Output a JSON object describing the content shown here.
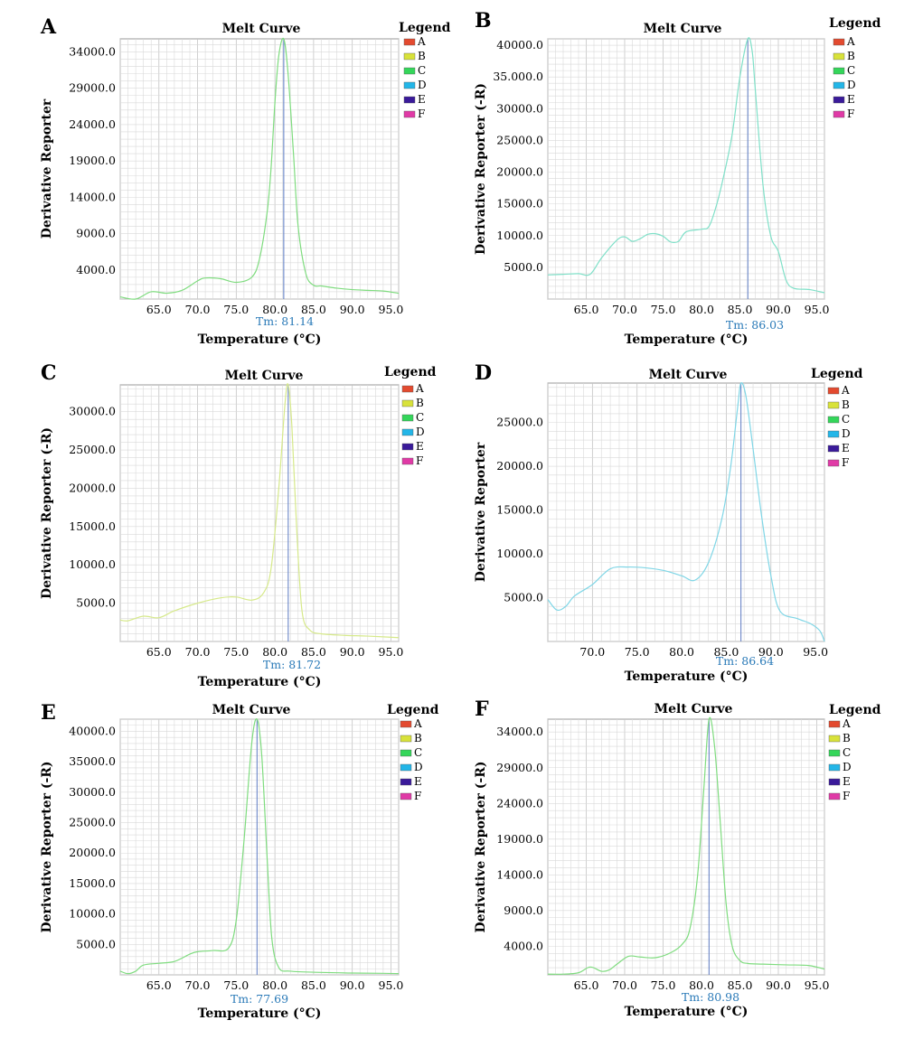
{
  "chart_data": [
    {
      "panel": "A",
      "type": "line",
      "title": "Melt Curve",
      "xlabel": "Temperature (°C)",
      "ylabel": "Derivative Reporter",
      "xlim": [
        60.0,
        96.0
      ],
      "ylim": [
        0,
        35800
      ],
      "xticks": [
        "65.0",
        "70.0",
        "75.0",
        "80.0",
        "85.0",
        "90.0",
        "95.0"
      ],
      "yticks": [
        "4000.0",
        "9000.0",
        "14000.0",
        "19000.0",
        "24000.0",
        "29000.0",
        "34000.0"
      ],
      "tm_value": 81.14,
      "tm_label": "Tm: 81.14",
      "curve_color": "#7fdc7f",
      "legend": {
        "title": "Legend",
        "items": [
          "A",
          "B",
          "C",
          "D",
          "E",
          "F"
        ]
      },
      "x": [
        60,
        62,
        64,
        66,
        68,
        70,
        71,
        73,
        75,
        77,
        78,
        79,
        79.5,
        80,
        80.5,
        81.14,
        81.7,
        82.4,
        83,
        84,
        85,
        86,
        88,
        90,
        92,
        94,
        96
      ],
      "y": [
        300,
        0,
        1000,
        800,
        1200,
        2500,
        2900,
        2800,
        2300,
        3000,
        5500,
        12000,
        18000,
        27000,
        33500,
        35800,
        31000,
        20000,
        10000,
        3500,
        1900,
        1800,
        1500,
        1300,
        1200,
        1100,
        800
      ]
    },
    {
      "panel": "B",
      "type": "line",
      "title": "Melt Curve",
      "xlabel": "Temperature (°C)",
      "ylabel": "Derivative Reporter (-R)",
      "xlim": [
        60.0,
        96.0
      ],
      "ylim": [
        0,
        41000
      ],
      "xticks": [
        "65.0",
        "70.0",
        "75.0",
        "80.0",
        "85.0",
        "90.0",
        "95.0"
      ],
      "yticks": [
        "5000.0",
        "10000.0",
        "15000.0",
        "20000.0",
        "25000.0",
        "30000.0",
        "35.000.0",
        "40000.0"
      ],
      "tm_value": 86.03,
      "tm_label": "Tm: 86.03",
      "curve_color": "#7fe0c8",
      "legend": {
        "title": "Legend",
        "items": [
          "A",
          "B",
          "C",
          "D",
          "E",
          "F"
        ]
      },
      "x": [
        60,
        62,
        64,
        65.5,
        67,
        69,
        70,
        71,
        72,
        73,
        74,
        75,
        76,
        77,
        78,
        80,
        81,
        82,
        83,
        84,
        85,
        86.03,
        86.6,
        87,
        88,
        89,
        90,
        91,
        92,
        94,
        96
      ],
      "y": [
        3800,
        3900,
        4000,
        3900,
        6500,
        9300,
        9800,
        9100,
        9500,
        10200,
        10300,
        9900,
        9000,
        9100,
        10600,
        11000,
        11500,
        15000,
        20000,
        26000,
        35000,
        41000,
        39000,
        33000,
        18000,
        10000,
        7500,
        3000,
        1700,
        1500,
        1000
      ]
    },
    {
      "panel": "C",
      "type": "line",
      "title": "Melt Curve",
      "xlabel": "Temperature (°C)",
      "ylabel": "Derivative Reporter (-R)",
      "xlim": [
        60.0,
        96.0
      ],
      "ylim": [
        0,
        33500
      ],
      "xticks": [
        "65.0",
        "70.0",
        "75.0",
        "80.0",
        "85.0",
        "90.0",
        "95.0"
      ],
      "yticks": [
        "5000.0",
        "10000.0",
        "15000.0",
        "20000.0",
        "25000.0",
        "30000.0"
      ],
      "tm_value": 81.72,
      "tm_label": "Tm: 81.72",
      "curve_color": "#d6e98a",
      "legend": {
        "title": "Legend",
        "items": [
          "A",
          "B",
          "C",
          "D",
          "E",
          "F"
        ]
      },
      "x": [
        60,
        61,
        63,
        65,
        67,
        70,
        73,
        75,
        77,
        78.5,
        79.5,
        80.5,
        81.3,
        81.72,
        82.2,
        82.8,
        83.5,
        84.5,
        86,
        89,
        92,
        96
      ],
      "y": [
        2800,
        2700,
        3300,
        3100,
        4000,
        5000,
        5700,
        5800,
        5400,
        6300,
        9500,
        20000,
        31000,
        33500,
        28000,
        15000,
        4000,
        1500,
        1000,
        800,
        700,
        500
      ]
    },
    {
      "panel": "D",
      "type": "line",
      "title": "Melt Curve",
      "xlabel": "Temperature (°C)",
      "ylabel": "Derivative Reporter",
      "xlim": [
        65.0,
        96.0
      ],
      "ylim": [
        0,
        29500
      ],
      "xticks": [
        "70.0",
        "75.0",
        "80.0",
        "85.0",
        "90.0",
        "95.0"
      ],
      "yticks": [
        "5000.0",
        "10000.0",
        "15000.0",
        "20000.0",
        "25000.0"
      ],
      "tm_value": 86.64,
      "tm_label": "Tm: 86.64",
      "curve_color": "#7fd6e6",
      "legend": {
        "title": "Legend",
        "items": [
          "A",
          "B",
          "C",
          "D",
          "E",
          "F"
        ]
      },
      "x": [
        65,
        66,
        67,
        68,
        70,
        72,
        74,
        76,
        78,
        80,
        81.5,
        83,
        84.5,
        85.5,
        86.3,
        86.64,
        87.2,
        88,
        89,
        90,
        91,
        93,
        94.5,
        95.5,
        96
      ],
      "y": [
        4800,
        3600,
        4000,
        5200,
        6500,
        8300,
        8500,
        8400,
        8100,
        7500,
        7000,
        9000,
        14000,
        20000,
        27000,
        29500,
        28000,
        22000,
        14000,
        7500,
        3500,
        2600,
        2000,
        1200,
        0
      ]
    },
    {
      "panel": "E",
      "type": "line",
      "title": "Melt Curve",
      "xlabel": "Temperature (°C)",
      "ylabel": "Derivative Reporter (-R)",
      "xlim": [
        60.0,
        96.0
      ],
      "ylim": [
        0,
        42000
      ],
      "xticks": [
        "65.0",
        "70.0",
        "75.0",
        "80.0",
        "85.0",
        "90.0",
        "95.0"
      ],
      "yticks": [
        "5000.0",
        "10000.0",
        "15000.0",
        "20000.0",
        "25000.0",
        "30000.0",
        "35000.0",
        "40000.0"
      ],
      "tm_value": 77.69,
      "tm_label": "Tm: 77.69",
      "curve_color": "#7fdc7f",
      "legend": {
        "title": "Legend",
        "items": [
          "A",
          "B",
          "C",
          "D",
          "E",
          "F"
        ]
      },
      "x": [
        60,
        61,
        62,
        63,
        65,
        67,
        69,
        70,
        72,
        74,
        75,
        76,
        77,
        77.69,
        78.3,
        79,
        79.6,
        80.5,
        82,
        86,
        90,
        94,
        96
      ],
      "y": [
        600,
        200,
        600,
        1600,
        1900,
        2200,
        3400,
        3800,
        4000,
        4400,
        9000,
        22000,
        38000,
        42000,
        36000,
        19000,
        6000,
        1200,
        600,
        400,
        300,
        250,
        200
      ]
    },
    {
      "panel": "F",
      "type": "line",
      "title": "Melt Curve",
      "xlabel": "Temperature (°C)",
      "ylabel": "Derivative Reporter (-R)",
      "xlim": [
        60.0,
        96.0
      ],
      "ylim": [
        0,
        35800
      ],
      "xticks": [
        "65.0",
        "70.0",
        "75.0",
        "80.0",
        "85.0",
        "90.0",
        "95.0"
      ],
      "yticks": [
        "4000.0",
        "9000.0",
        "14000.0",
        "19000.0",
        "24000.0",
        "29000.0",
        "34000.0"
      ],
      "tm_value": 80.98,
      "tm_label": "Tm: 80.98",
      "curve_color": "#7fdc7f",
      "legend": {
        "title": "Legend",
        "items": [
          "A",
          "B",
          "C",
          "D",
          "E",
          "F"
        ]
      },
      "x": [
        60,
        62,
        64,
        65.5,
        67,
        68,
        69,
        70.5,
        72,
        74,
        76,
        77.5,
        78.5,
        79.5,
        80.3,
        80.98,
        81.7,
        82.4,
        83.2,
        84,
        85,
        86,
        88,
        91,
        94,
        96
      ],
      "y": [
        100,
        100,
        300,
        1100,
        500,
        700,
        1500,
        2600,
        2500,
        2400,
        3100,
        4300,
        6500,
        14000,
        26000,
        35800,
        32000,
        22000,
        10000,
        4000,
        2000,
        1600,
        1500,
        1400,
        1300,
        800
      ]
    }
  ],
  "legend_colors": [
    "#e34a2f",
    "#d8e23a",
    "#34d65a",
    "#23b6e8",
    "#3a1a9a",
    "#e03aa6"
  ]
}
